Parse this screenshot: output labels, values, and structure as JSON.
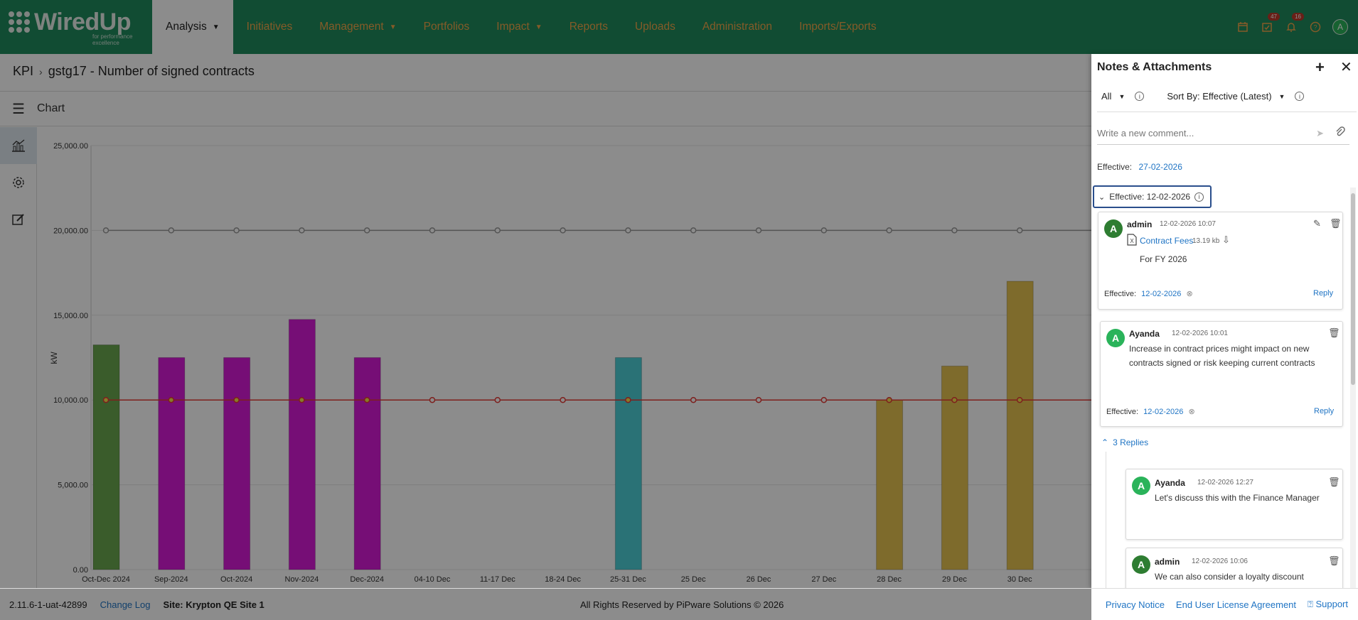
{
  "nav": {
    "logo_text": "WiredUp",
    "logo_tagline": "for performance excellence",
    "items": [
      {
        "label": "Analysis",
        "dropdown": true,
        "active": true
      },
      {
        "label": "Initiatives",
        "dropdown": false
      },
      {
        "label": "Management",
        "dropdown": true
      },
      {
        "label": "Portfolios",
        "dropdown": false
      },
      {
        "label": "Impact",
        "dropdown": true
      },
      {
        "label": "Reports",
        "dropdown": false
      },
      {
        "label": "Uploads",
        "dropdown": false
      },
      {
        "label": "Administration",
        "dropdown": false
      },
      {
        "label": "Imports/Exports",
        "dropdown": false
      }
    ],
    "tasks_badge": "47",
    "notifications_badge": "16",
    "user_initial": "A"
  },
  "breadcrumb": {
    "root": "KPI",
    "current": "gstg17 - Number of signed contracts"
  },
  "chart_header": {
    "title": "Chart"
  },
  "chart_data": {
    "type": "bar",
    "ylabel": "kW",
    "ylim": [
      0,
      25000
    ],
    "yticks": [
      "0.00",
      "5,000.00",
      "10,000.00",
      "15,000.00",
      "20,000.00",
      "25,000.00"
    ],
    "categories": [
      "Oct-Dec 2024",
      "Sep-2024",
      "Oct-2024",
      "Nov-2024",
      "Dec-2024",
      "04-10 Dec",
      "11-17 Dec",
      "18-24 Dec",
      "25-31 Dec",
      "25 Dec",
      "26 Dec",
      "27 Dec",
      "28 Dec",
      "29 Dec",
      "30 Dec"
    ],
    "values": [
      13250,
      12500,
      12500,
      14750,
      12500,
      null,
      null,
      null,
      12500,
      null,
      null,
      null,
      10000,
      12000,
      17000
    ],
    "bar_colors": [
      "#6aa84f",
      "#d81bd8",
      "#d81bd8",
      "#d81bd8",
      "#d81bd8",
      null,
      null,
      null,
      "#4dd0d8",
      null,
      null,
      null,
      "#e6c450",
      "#e6c450",
      "#e6c450"
    ],
    "target_line": {
      "values": [
        20000,
        20000,
        20000,
        20000,
        20000,
        20000,
        20000,
        20000,
        20000,
        20000,
        20000,
        20000,
        20000,
        20000,
        20000
      ],
      "color": "#999999"
    },
    "baseline_line": {
      "values": [
        10000,
        10000,
        10000,
        10000,
        10000,
        10000,
        10000,
        10000,
        10000,
        10000,
        10000,
        10000,
        10000,
        10000,
        10000
      ],
      "color": "#e53935"
    },
    "grid": true
  },
  "panel": {
    "title": "Notes & Attachments",
    "filter_all": "All",
    "sort_label": "Sort By: Effective (Latest)",
    "comment_placeholder": "Write a new comment...",
    "top_effective_label": "Effective:",
    "top_effective_date": "27-02-2026",
    "group_label": "Effective: 12-02-2026",
    "notes": [
      {
        "author": "admin",
        "time": "12-02-2026 10:07",
        "attachment": "Contract Fees",
        "attachment_size": "13.19 kb",
        "text": "For FY 2026",
        "effective_label": "Effective:",
        "effective_date": "12-02-2026",
        "reply": "Reply"
      },
      {
        "author": "Ayanda",
        "time": "12-02-2026 10:01",
        "text": "Increase in contract prices might impact on new contracts signed or risk keeping current contracts",
        "effective_label": "Effective:",
        "effective_date": "12-02-2026",
        "reply": "Reply"
      }
    ],
    "replies_toggle": "3 Replies",
    "replies": [
      {
        "author": "Ayanda",
        "time": "12-02-2026 12:27",
        "text": "Let's discuss this with the Finance Manager"
      },
      {
        "author": "admin",
        "time": "12-02-2026 10:06",
        "text": "We can also consider a loyalty discount"
      }
    ]
  },
  "footer": {
    "version": "2.11.6-1-uat-42899",
    "changelog": "Change Log",
    "site": "Site: Krypton QE Site 1",
    "copyright": "All Rights Reserved by PiPware Solutions © 2026",
    "privacy": "Privacy Notice",
    "eula": "End User License Agreement",
    "support": "Support"
  }
}
